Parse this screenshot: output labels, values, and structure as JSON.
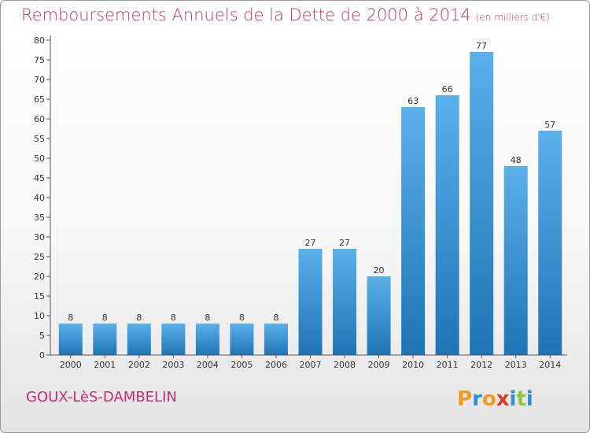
{
  "title": "Remboursements Annuels de la Dette de 2000 à 2014",
  "subtitle": "(en milliers d'€)",
  "commune": "GOUX-LèS-DAMBELIN",
  "logo_text": "Proxiti",
  "colors": {
    "title": "#c12f72",
    "bar_top": "#5bb0ea",
    "bar_bottom": "#1f74b5"
  },
  "chart_data": {
    "type": "bar",
    "categories": [
      "2000",
      "2001",
      "2002",
      "2003",
      "2004",
      "2005",
      "2006",
      "2007",
      "2008",
      "2009",
      "2010",
      "2011",
      "2012",
      "2013",
      "2014"
    ],
    "values": [
      8,
      8,
      8,
      8,
      8,
      8,
      8,
      27,
      27,
      20,
      63,
      66,
      77,
      48,
      57
    ],
    "ylim": [
      0,
      80
    ],
    "yticks": [
      0,
      5,
      10,
      15,
      20,
      25,
      30,
      35,
      40,
      45,
      50,
      55,
      60,
      65,
      70,
      75,
      80
    ],
    "grid": false
  }
}
